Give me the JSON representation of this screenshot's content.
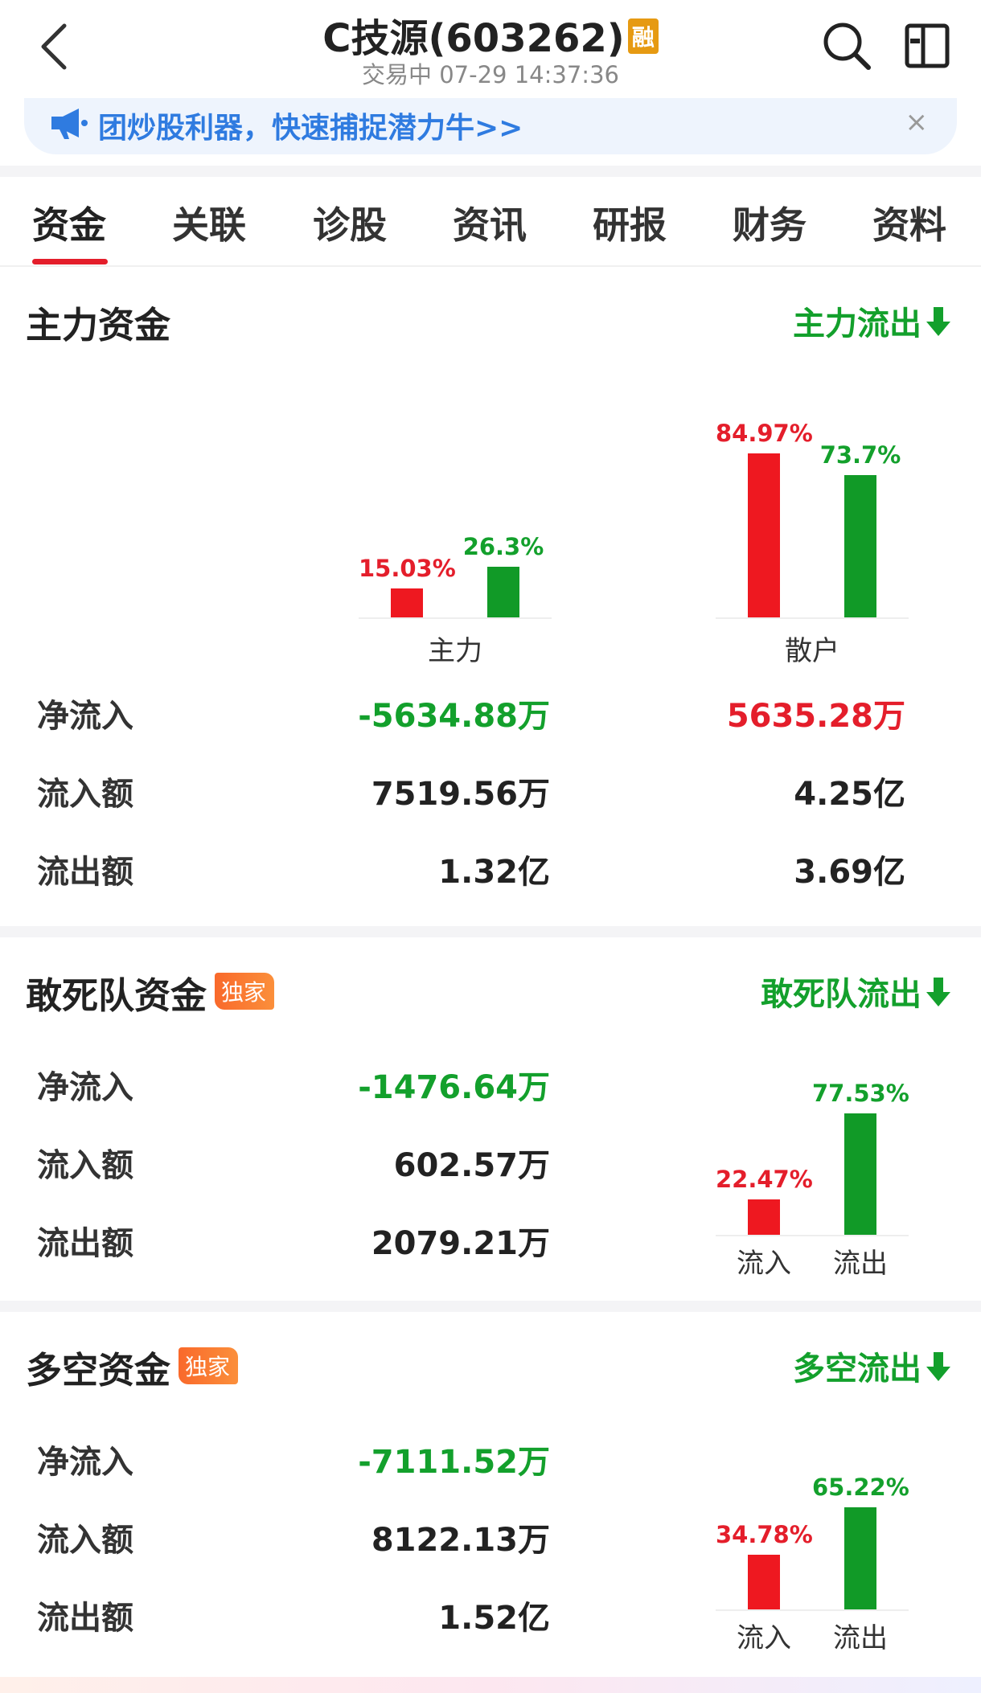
{
  "header": {
    "title": "C技源(603262)",
    "title_badge": "融",
    "status": "交易中 07-29 14:37:36"
  },
  "banner": {
    "text": "团炒股利器，快速捕捉潜力牛>>",
    "close": "×"
  },
  "tabs": [
    "资金",
    "关联",
    "诊股",
    "资讯",
    "研报",
    "财务",
    "资料"
  ],
  "active_tab": "资金",
  "main_funds": {
    "title": "主力资金",
    "trend": "主力流出",
    "chart_data": {
      "type": "bar",
      "categories": [
        "主力",
        "散户"
      ],
      "series": [
        {
          "values": [
            15.03,
            84.97
          ],
          "labels": [
            "15.03%",
            "84.97%"
          ],
          "color": "#ee1820"
        },
        {
          "values": [
            26.3,
            73.7
          ],
          "labels": [
            "26.3%",
            "73.7%"
          ],
          "color": "#119a27"
        }
      ],
      "ylim": [
        0,
        100
      ]
    },
    "rows": [
      {
        "label": "净流入",
        "main": "-5634.88万",
        "retail": "5635.28万"
      },
      {
        "label": "流入额",
        "main": "7519.56万",
        "retail": "4.25亿"
      },
      {
        "label": "流出额",
        "main": "1.32亿",
        "retail": "3.69亿"
      }
    ]
  },
  "dare_funds": {
    "title": "敢死队资金",
    "badge": "独家",
    "trend": "敢死队流出",
    "rows": [
      {
        "label": "净流入",
        "value": "-1476.64万"
      },
      {
        "label": "流入额",
        "value": "602.57万"
      },
      {
        "label": "流出额",
        "value": "2079.21万"
      }
    ],
    "chart_data": {
      "type": "bar",
      "categories": [
        "流入",
        "流出"
      ],
      "values": [
        22.47,
        77.53
      ],
      "labels": [
        "22.47%",
        "77.53%"
      ],
      "ylim": [
        0,
        100
      ]
    }
  },
  "longshort_funds": {
    "title": "多空资金",
    "badge": "独家",
    "trend": "多空流出",
    "rows": [
      {
        "label": "净流入",
        "value": "-7111.52万"
      },
      {
        "label": "流入额",
        "value": "8122.13万"
      },
      {
        "label": "流出额",
        "value": "1.52亿"
      }
    ],
    "chart_data": {
      "type": "bar",
      "categories": [
        "流入",
        "流出"
      ],
      "values": [
        34.78,
        65.22
      ],
      "labels": [
        "34.78%",
        "65.22%"
      ],
      "ylim": [
        0,
        100
      ]
    }
  },
  "colors": {
    "up": "#e41e2b",
    "down": "#13a02c",
    "accent": "#2f7be0"
  }
}
